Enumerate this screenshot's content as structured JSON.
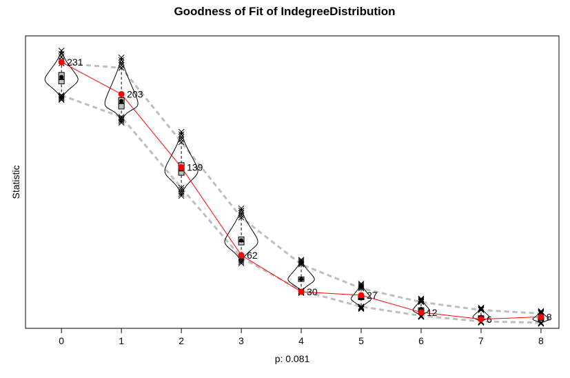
{
  "chart_data": {
    "type": "line",
    "title": "Goodness of Fit of IndegreeDistribution",
    "xlabel": "p: 0.081",
    "ylabel": "Statistic",
    "categories": [
      "0",
      "1",
      "2",
      "3",
      "4",
      "5",
      "6",
      "7",
      "8"
    ],
    "x": [
      0,
      1,
      2,
      3,
      4,
      5,
      6,
      7,
      8
    ],
    "observed": {
      "values": [
        231,
        203,
        139,
        62,
        30,
        27,
        12,
        6,
        8
      ],
      "labels": [
        "231",
        "203",
        "139",
        "62",
        "30",
        "27",
        "12",
        "6",
        "8"
      ]
    },
    "simulated_median": [
      216,
      195,
      136,
      74,
      41,
      24,
      14,
      8,
      6
    ],
    "simulated_mean": [
      218,
      197,
      138,
      75,
      41,
      25,
      15,
      8,
      7
    ],
    "box_q1": [
      212,
      190,
      132,
      71,
      39,
      23,
      13,
      7,
      5
    ],
    "box_q3": [
      222,
      200,
      143,
      78,
      43,
      27,
      16,
      9,
      7
    ],
    "band_upper": [
      230,
      226,
      161,
      95,
      54,
      33,
      21,
      14,
      11
    ],
    "band_lower": [
      202,
      183,
      121,
      60,
      31,
      17,
      9,
      4,
      3
    ],
    "sim_min": [
      198,
      178,
      114,
      55,
      29,
      15,
      8,
      3,
      2
    ],
    "sim_max": [
      241,
      235,
      170,
      103,
      58,
      37,
      24,
      16,
      13
    ],
    "ylim": [
      -2,
      254
    ],
    "xlim": [
      -0.6,
      8.3
    ],
    "yaxis_ticks": "none",
    "grid": false,
    "legend": "none",
    "colors": {
      "observed": "#ff0000",
      "band": "#bebebe",
      "box_fill": "#bebebe",
      "violin": "#000000",
      "cross": "#000000"
    }
  }
}
